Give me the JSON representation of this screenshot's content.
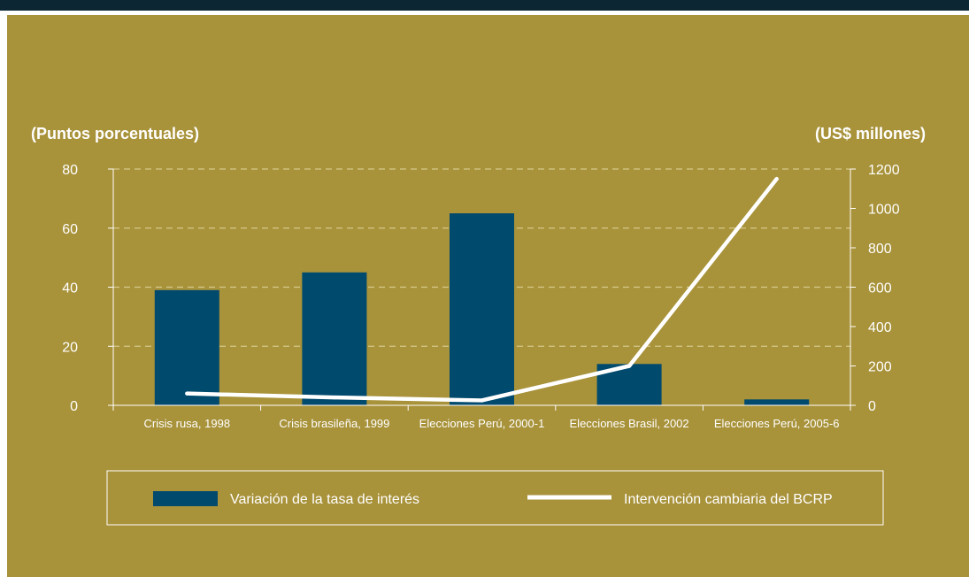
{
  "colors": {
    "background": "#a8923a",
    "bars": "#004a6e",
    "line": "#ffffff",
    "grid": "#d6c98a",
    "header_bar": "#0c2733"
  },
  "chart_data": {
    "type": "bar",
    "left_axis_title": "(Puntos porcentuales)",
    "right_axis_title": "(US$ millones)",
    "categories": [
      "Crisis rusa, 1998",
      "Crisis brasileña, 1999",
      "Elecciones Perú, 2000-1",
      "Elecciones Brasil, 2002",
      "Elecciones Perú, 2005-6"
    ],
    "series": [
      {
        "name": "Variación de la tasa de interés",
        "type": "bar",
        "axis": "left",
        "values": [
          39,
          45,
          65,
          14,
          2
        ]
      },
      {
        "name": "Intervención cambiaria del BCRP",
        "type": "line",
        "axis": "right",
        "values": [
          60,
          40,
          25,
          200,
          1150
        ]
      }
    ],
    "ylim_left": [
      0,
      80
    ],
    "yticks_left": [
      0,
      20,
      40,
      60,
      80
    ],
    "ylim_right": [
      0,
      1200
    ],
    "yticks_right": [
      0,
      200,
      400,
      600,
      800,
      1000,
      1200
    ],
    "grid": true,
    "legend_position": "bottom"
  }
}
